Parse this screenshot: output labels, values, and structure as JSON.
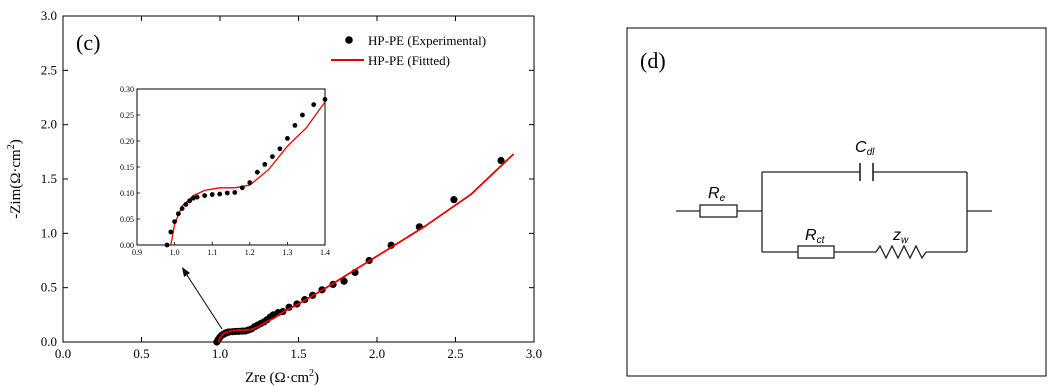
{
  "chart_data": [
    {
      "type": "scatter",
      "panel_label": "(c)",
      "xlabel_main": "Zre (Ω·cm",
      "xlabel_sup": "2",
      "xlabel_close": ")",
      "ylabel_main": "-Zim(Ω·cm",
      "ylabel_sup": "2",
      "ylabel_close": ")",
      "xlim": [
        0.0,
        3.0
      ],
      "ylim": [
        0.0,
        3.0
      ],
      "xticks": [
        "0.0",
        "0.5",
        "1.0",
        "1.5",
        "2.0",
        "2.5",
        "3.0"
      ],
      "yticks": [
        "0.0",
        "0.5",
        "1.0",
        "1.5",
        "2.0",
        "2.5",
        "3.0"
      ],
      "grid": false,
      "legend_position": "top-right",
      "series": [
        {
          "name": "HP-PE (Experimental)",
          "kind": "scatter",
          "color": "#000000",
          "x": [
            0.98,
            0.99,
            1.0,
            1.01,
            1.02,
            1.03,
            1.04,
            1.05,
            1.06,
            1.08,
            1.1,
            1.12,
            1.14,
            1.16,
            1.18,
            1.2,
            1.22,
            1.24,
            1.26,
            1.28,
            1.3,
            1.32,
            1.34,
            1.37,
            1.4,
            1.44,
            1.49,
            1.54,
            1.59,
            1.65,
            1.72,
            1.79,
            1.86,
            1.95,
            2.09,
            2.27,
            2.49,
            2.79
          ],
          "y": [
            0.0,
            0.025,
            0.045,
            0.06,
            0.07,
            0.078,
            0.085,
            0.09,
            0.092,
            0.095,
            0.097,
            0.098,
            0.1,
            0.101,
            0.11,
            0.12,
            0.14,
            0.155,
            0.17,
            0.185,
            0.205,
            0.23,
            0.25,
            0.27,
            0.28,
            0.32,
            0.35,
            0.39,
            0.43,
            0.48,
            0.53,
            0.56,
            0.64,
            0.75,
            0.89,
            1.06,
            1.31,
            1.67
          ]
        },
        {
          "name": "HP-PE (Fittted)",
          "kind": "line",
          "color": "#e60000",
          "x": [
            0.99,
            1.0,
            1.02,
            1.05,
            1.08,
            1.12,
            1.16,
            1.2,
            1.25,
            1.3,
            1.35,
            1.4,
            1.5,
            1.7,
            2.0,
            2.3,
            2.6,
            2.87
          ],
          "y": [
            0.0,
            0.04,
            0.075,
            0.095,
            0.105,
            0.11,
            0.11,
            0.115,
            0.145,
            0.19,
            0.225,
            0.275,
            0.35,
            0.52,
            0.79,
            1.06,
            1.36,
            1.73
          ]
        }
      ],
      "inset": {
        "xlim": [
          0.9,
          1.4
        ],
        "ylim": [
          0.0,
          0.3
        ],
        "xticks": [
          "0.9",
          "1.0",
          "1.1",
          "1.2",
          "1.3",
          "1.4"
        ],
        "yticks": [
          "0.00",
          "0.05",
          "0.10",
          "0.15",
          "0.20",
          "0.25",
          "0.30"
        ]
      }
    },
    {
      "type": "circuit",
      "panel_label": "(d)",
      "components": {
        "resistor_e": {
          "symbol": "R",
          "sub": "e"
        },
        "capacitor_dl": {
          "symbol": "C",
          "sub": "dl"
        },
        "resistor_ct": {
          "symbol": "R",
          "sub": "ct"
        },
        "warburg": {
          "symbol": "z",
          "sub": "w"
        }
      }
    }
  ]
}
